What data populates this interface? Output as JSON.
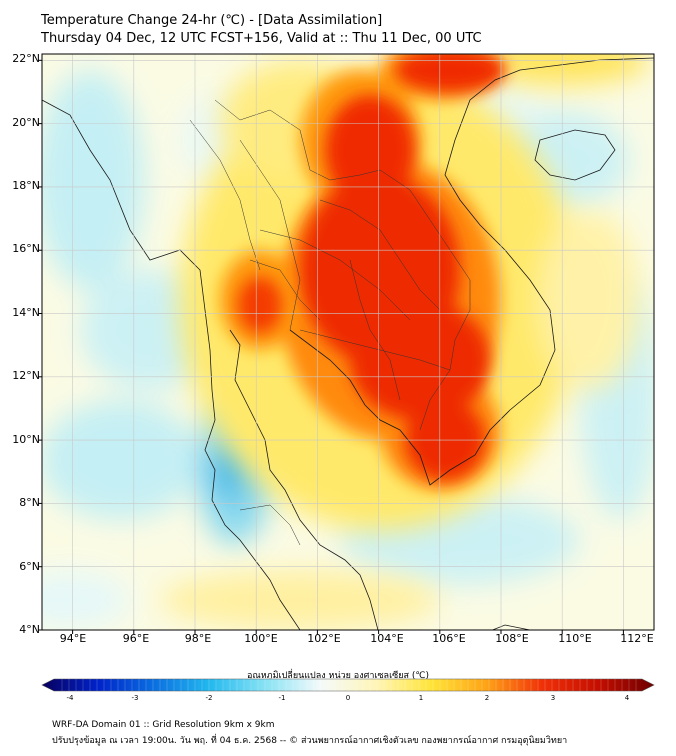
{
  "header": {
    "title": "Temperature Change 24-hr (℃) - [Data Assimilation]",
    "subtitle": "Thursday 04 Dec, 12 UTC FCST+156, Valid at :: Thu 11 Dec, 00 UTC"
  },
  "map": {
    "lat_labels": [
      "22°N",
      "20°N",
      "18°N",
      "16°N",
      "14°N",
      "12°N",
      "10°N",
      "8°N",
      "6°N",
      "4°N"
    ],
    "lat_values": [
      22,
      20,
      18,
      16,
      14,
      12,
      10,
      8,
      6,
      4
    ],
    "lon_labels": [
      "94°E",
      "96°E",
      "98°E",
      "100°E",
      "102°E",
      "104°E",
      "106°E",
      "108°E",
      "110°E",
      "112°E"
    ],
    "lon_values": [
      94,
      96,
      98,
      100,
      102,
      104,
      106,
      108,
      110,
      112
    ],
    "extent": {
      "lon_min": 93,
      "lon_max": 113,
      "lat_min": 4,
      "lat_max": 22.2
    }
  },
  "colorbar": {
    "label": "อุณหภูมิเปลี่ยนแปลง หน่วย องศาเซลเซียส (℃)",
    "ticks": [
      "-4",
      "-3",
      "-2",
      "-1",
      "0",
      "1",
      "2",
      "3",
      "4"
    ],
    "tick_values": [
      -4,
      -3,
      -2,
      -1,
      0,
      1,
      2,
      3,
      4
    ],
    "colors": [
      "#08005e",
      "#0022c8",
      "#0a6ee0",
      "#22b8ee",
      "#86e2f4",
      "#f4fafa",
      "#fff5b8",
      "#ffe438",
      "#ffa216",
      "#f03008",
      "#c40e00",
      "#6e0000"
    ]
  },
  "footer": {
    "line1": "WRF-DA Domain 01 :: Grid Resolution 9km x 9km",
    "line2": "ปรับปรุงข้อมูล ณ เวลา 19:00น. วัน พฤ. ที่ 04 ธ.ค. 2568 -- © ส่วนพยากรณ์อากาศเชิงตัวเลข กองพยากรณ์อากาศ กรมอุตุนิยมวิทยา"
  }
}
